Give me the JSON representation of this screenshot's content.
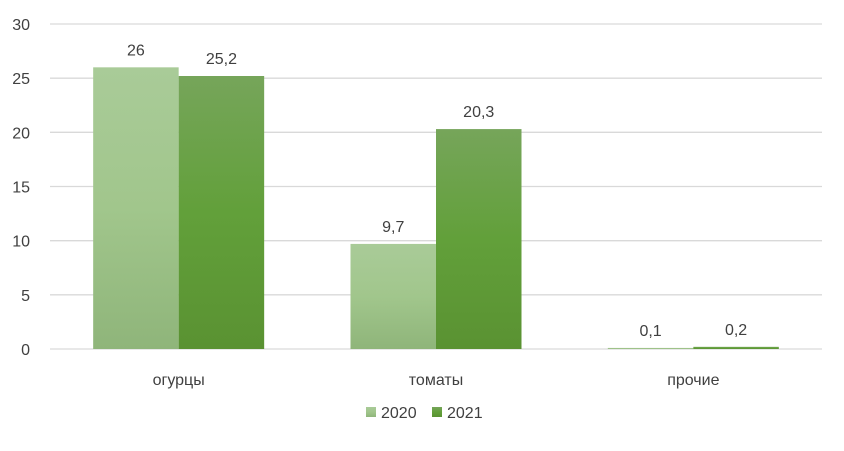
{
  "chart_data": {
    "type": "bar",
    "title": "",
    "xlabel": "",
    "ylabel": "",
    "categories": [
      "огурцы",
      "томаты",
      "прочие"
    ],
    "series": [
      {
        "name": "2020",
        "values": [
          26,
          9.7,
          0.1
        ],
        "labels": [
          "26",
          "9,7",
          "0,1"
        ],
        "color": "#a1c68c"
      },
      {
        "name": "2021",
        "values": [
          25.2,
          20.3,
          0.2
        ],
        "labels": [
          "25,2",
          "20,3",
          "0,2"
        ],
        "color": "#62a03a"
      }
    ],
    "ylim": [
      0,
      30
    ],
    "yticks": [
      0,
      5,
      10,
      15,
      20,
      25,
      30
    ],
    "grid": true,
    "legend": "bottom-center"
  }
}
